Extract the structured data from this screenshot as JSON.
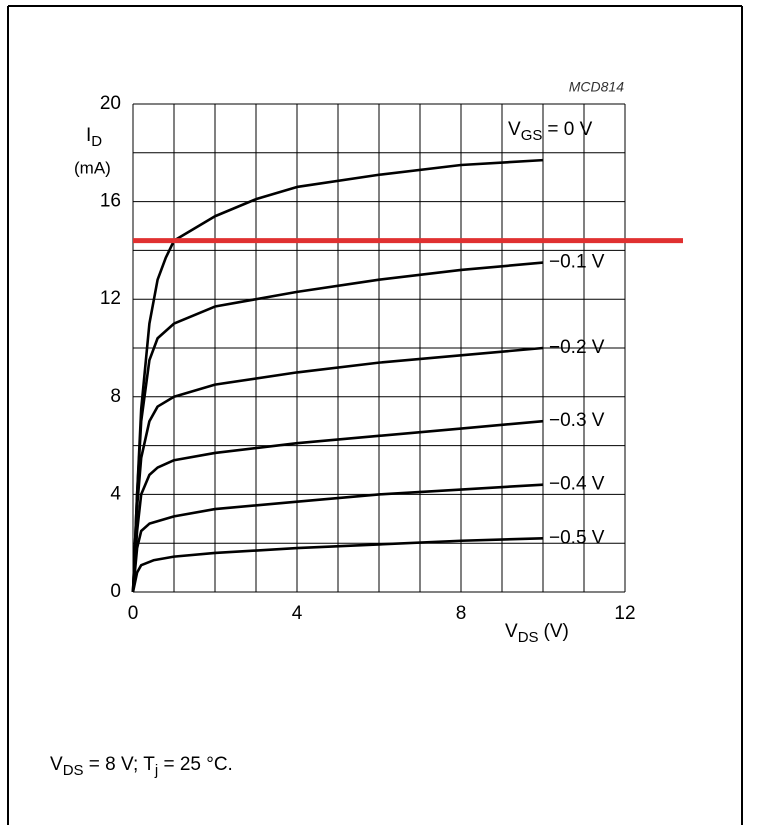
{
  "chart_data": {
    "type": "line",
    "code": "MCD814",
    "y_label": "I",
    "y_label_sub": "D",
    "y_unit": "(mA)",
    "x_label": "V",
    "x_label_sub": "DS",
    "x_unit": "(V)",
    "legend_prefix": "V",
    "legend_prefix_sub": "GS",
    "xlim": [
      0,
      12
    ],
    "xticks": [
      0,
      4,
      8,
      12
    ],
    "ylim": [
      0,
      20
    ],
    "yticks": [
      0,
      4,
      8,
      12,
      16,
      20
    ],
    "xgrid": [
      0,
      1,
      2,
      3,
      4,
      5,
      6,
      7,
      8,
      9,
      10,
      11,
      12
    ],
    "ygrid": [
      0,
      2,
      4,
      6,
      8,
      10,
      12,
      14,
      16,
      18,
      20
    ],
    "grid": true,
    "series": [
      {
        "name": "= 0 V",
        "color": "#000000",
        "x": [
          0,
          0.1,
          0.2,
          0.4,
          0.6,
          0.8,
          1,
          2,
          3,
          4,
          6,
          8,
          10
        ],
        "values": [
          0,
          4,
          7.5,
          11,
          12.8,
          13.7,
          14.4,
          15.4,
          16.1,
          16.6,
          17.1,
          17.5,
          17.7
        ]
      },
      {
        "name": "−0.1 V",
        "color": "#000000",
        "x": [
          0,
          0.1,
          0.2,
          0.4,
          0.6,
          1,
          2,
          4,
          6,
          8,
          10
        ],
        "values": [
          0,
          4,
          7,
          9.5,
          10.4,
          11,
          11.7,
          12.3,
          12.8,
          13.2,
          13.5
        ]
      },
      {
        "name": "−0.2 V",
        "color": "#000000",
        "x": [
          0,
          0.1,
          0.2,
          0.4,
          0.6,
          1,
          2,
          4,
          6,
          8,
          10
        ],
        "values": [
          0,
          3.5,
          5.5,
          7,
          7.6,
          8,
          8.5,
          9,
          9.4,
          9.7,
          10
        ]
      },
      {
        "name": "−0.3 V",
        "color": "#000000",
        "x": [
          0,
          0.1,
          0.2,
          0.4,
          0.6,
          1,
          2,
          4,
          6,
          8,
          10
        ],
        "values": [
          0,
          2.5,
          4,
          4.8,
          5.1,
          5.4,
          5.7,
          6.1,
          6.4,
          6.7,
          7
        ]
      },
      {
        "name": "−0.4 V",
        "color": "#000000",
        "x": [
          0,
          0.1,
          0.2,
          0.4,
          1,
          2,
          4,
          6,
          8,
          10
        ],
        "values": [
          0,
          1.8,
          2.5,
          2.8,
          3.1,
          3.4,
          3.7,
          4,
          4.2,
          4.4
        ]
      },
      {
        "name": "−0.5 V",
        "color": "#000000",
        "x": [
          0,
          0.1,
          0.2,
          0.5,
          1,
          2,
          4,
          6,
          8,
          10
        ],
        "values": [
          0,
          0.8,
          1.1,
          1.3,
          1.45,
          1.6,
          1.8,
          1.95,
          2.1,
          2.2
        ]
      }
    ],
    "reference_line": {
      "value": 14.4,
      "color": "#e03030"
    },
    "footnote": [
      {
        "text": "V",
        "sub": false
      },
      {
        "text": "DS",
        "sub": true
      },
      {
        "text": " = 8 V; T",
        "sub": false
      },
      {
        "text": "j",
        "sub": true
      },
      {
        "text": " = 25 °C.",
        "sub": false
      }
    ]
  }
}
